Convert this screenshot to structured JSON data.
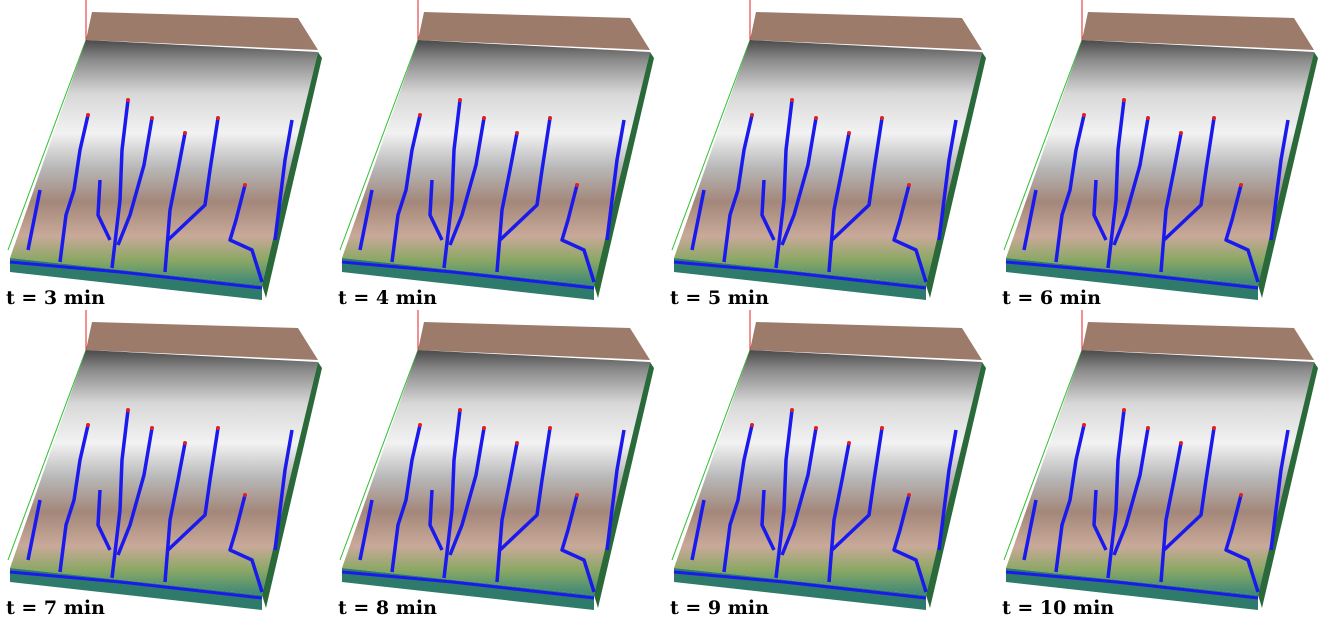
{
  "panels": [
    {
      "caption": "t = 3 min"
    },
    {
      "caption": "t = 4 min"
    },
    {
      "caption": "t = 5 min"
    },
    {
      "caption": "t = 6 min"
    },
    {
      "caption": "t = 7 min"
    },
    {
      "caption": "t = 8 min"
    },
    {
      "caption": "t = 9 min"
    },
    {
      "caption": "t = 10 min"
    }
  ]
}
